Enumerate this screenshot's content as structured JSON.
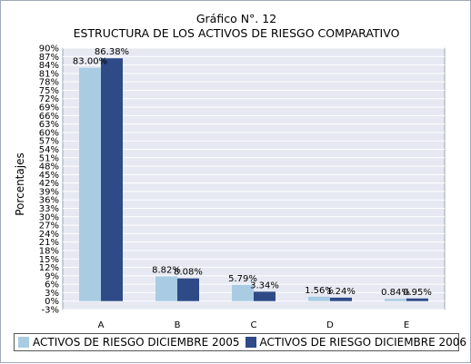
{
  "chart_data": {
    "type": "bar",
    "title": "Gráfico N°. 12",
    "subtitle": "ESTRUCTURA DE LOS ACTIVOS DE RIESGO COMPARATIVO",
    "ylabel": "Porcentajes",
    "xlabel": "",
    "categories": [
      "A",
      "B",
      "C",
      "D",
      "E"
    ],
    "series": [
      {
        "name": "ACTIVOS DE RIESGO DICIEMBRE 2005",
        "values": [
          83.0,
          8.82,
          5.79,
          1.56,
          0.84
        ],
        "labels": [
          "83.00%",
          "8.82%",
          "5.79%",
          "1.56%",
          "0.84%"
        ],
        "color": "#a9cce3"
      },
      {
        "name": "ACTIVOS DE RIESGO DICIEMBRE 2006",
        "values": [
          86.38,
          8.08,
          3.34,
          1.24,
          0.95
        ],
        "labels": [
          "86.38%",
          "8.08%",
          "3.34%",
          "1.24%",
          "0.95%"
        ],
        "color": "#2e4a87"
      }
    ],
    "ylim": [
      -3,
      90
    ],
    "ytick_step": 3,
    "yticks": [
      "-3%",
      "0%",
      "3%",
      "6%",
      "9%",
      "12%",
      "15%",
      "18%",
      "21%",
      "24%",
      "27%",
      "30%",
      "33%",
      "36%",
      "39%",
      "42%",
      "45%",
      "48%",
      "51%",
      "54%",
      "57%",
      "60%",
      "63%",
      "66%",
      "69%",
      "72%",
      "75%",
      "78%",
      "81%",
      "84%",
      "87%",
      "90%"
    ],
    "grid": true,
    "plot_background": "#e6e9f2",
    "legend_position": "bottom"
  }
}
